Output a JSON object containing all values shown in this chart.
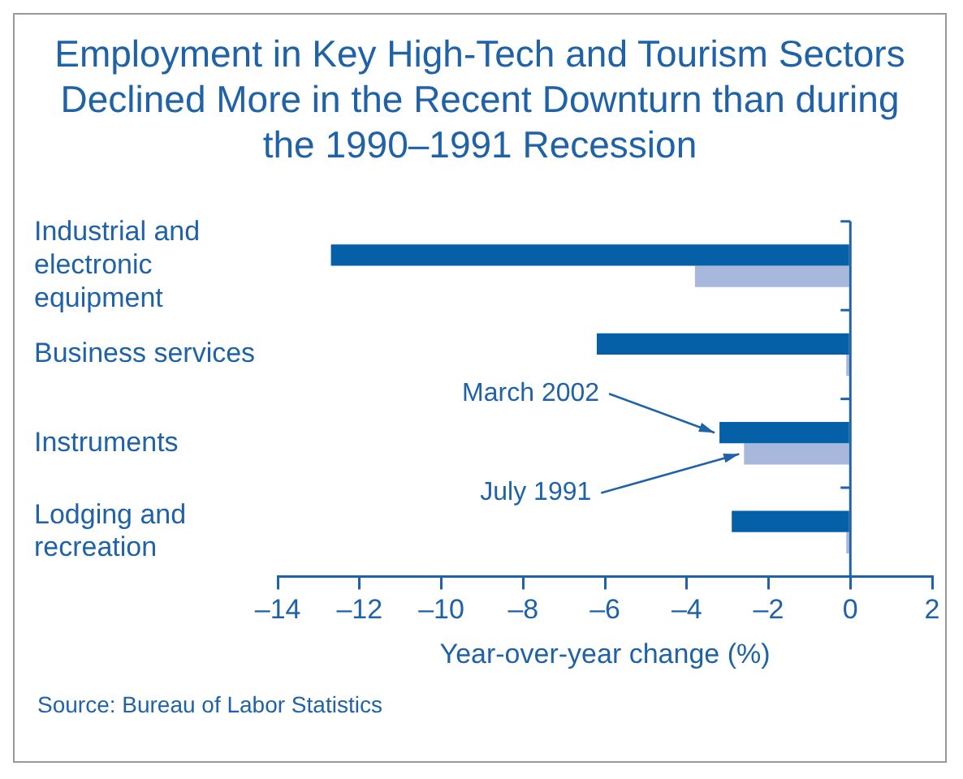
{
  "chart_data": {
    "type": "bar",
    "orientation": "horizontal",
    "title": "Employment in Key High-Tech and Tourism Sectors Declined More in the Recent Downturn than during the 1990–1991 Recession",
    "xlabel": "Year-over-year change (%)",
    "categories": [
      "Industrial and electronic equipment",
      "Business services",
      "Instruments",
      "Lodging and recreation"
    ],
    "series": [
      {
        "name": "March 2002",
        "color": "#0560a8",
        "values": [
          -12.7,
          -6.2,
          -3.2,
          -2.9
        ]
      },
      {
        "name": "July 1991",
        "color": "#a8b8dc",
        "values": [
          -3.8,
          -0.1,
          -2.6,
          -0.1
        ]
      }
    ],
    "xlim": [
      -14,
      2
    ],
    "xticks": [
      {
        "value": -14,
        "label": "–14"
      },
      {
        "value": -12,
        "label": "–12"
      },
      {
        "value": -10,
        "label": "–10"
      },
      {
        "value": -8,
        "label": "–8"
      },
      {
        "value": -6,
        "label": "–6"
      },
      {
        "value": -4,
        "label": "–4"
      },
      {
        "value": -2,
        "label": "–2"
      },
      0,
      2
    ],
    "ref_lines": [
      {
        "axis": "x",
        "value": 0
      }
    ],
    "grid": false,
    "legend": false,
    "annotations": [
      "Source: Bureau of Labor Statistics"
    ]
  }
}
